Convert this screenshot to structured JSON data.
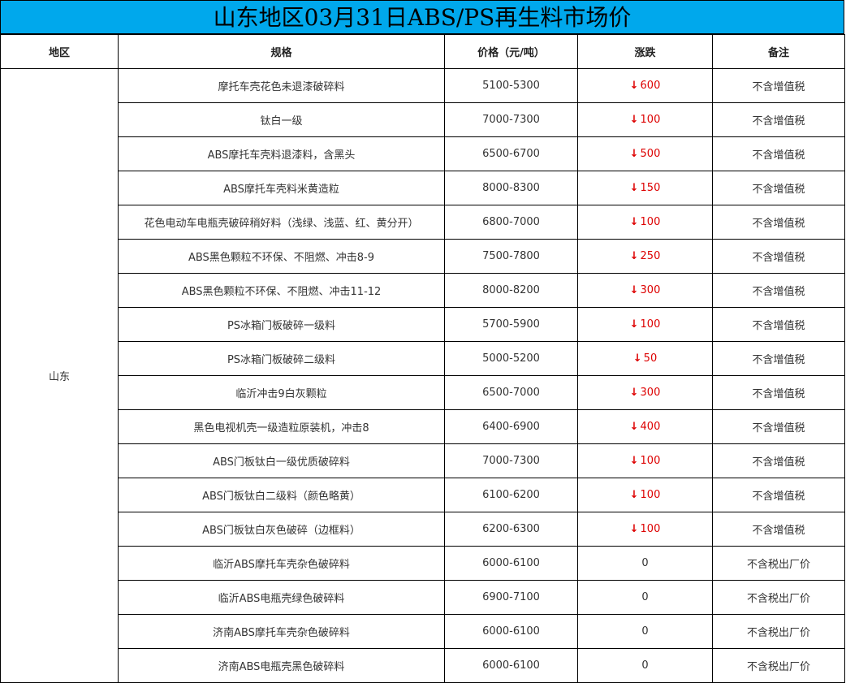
{
  "title": "山东地区03月31日ABS/PS再生料市场价",
  "headers": [
    "地区",
    "规格",
    "价格（元/吨）",
    "涨跌",
    "备注"
  ],
  "region": "山东",
  "colors": {
    "title_bg": "#00a8ec",
    "down": "#dd0000"
  },
  "rows": [
    {
      "spec": "摩托车壳花色未退漆破碎料",
      "price": "5100-5300",
      "dir": "down",
      "change": "600",
      "note": "不含增值税"
    },
    {
      "spec": "钛白一级",
      "price": "7000-7300",
      "dir": "down",
      "change": "100",
      "note": "不含增值税"
    },
    {
      "spec": "ABS摩托车壳料退漆料，含黑头",
      "price": "6500-6700",
      "dir": "down",
      "change": "500",
      "note": "不含增值税"
    },
    {
      "spec": "ABS摩托车壳料米黄造粒",
      "price": "8000-8300",
      "dir": "down",
      "change": "150",
      "note": "不含增值税"
    },
    {
      "spec": "花色电动车电瓶壳破碎稍好料（浅绿、浅蓝、红、黄分开）",
      "price": "6800-7000",
      "dir": "down",
      "change": "100",
      "note": "不含增值税"
    },
    {
      "spec": "ABS黑色颗粒不环保、不阻燃、冲击8-9",
      "price": "7500-7800",
      "dir": "down",
      "change": "250",
      "note": "不含增值税"
    },
    {
      "spec": "ABS黑色颗粒不环保、不阻燃、冲击11-12",
      "price": "8000-8200",
      "dir": "down",
      "change": "300",
      "note": "不含增值税"
    },
    {
      "spec": "PS冰箱门板破碎一级料",
      "price": "5700-5900",
      "dir": "down",
      "change": "100",
      "note": "不含增值税"
    },
    {
      "spec": "PS冰箱门板破碎二级料",
      "price": "5000-5200",
      "dir": "down",
      "change": "50",
      "note": "不含增值税"
    },
    {
      "spec": "临沂冲击9白灰颗粒",
      "price": "6500-7000",
      "dir": "down",
      "change": "300",
      "note": "不含增值税"
    },
    {
      "spec": "黑色电视机壳一级造粒原装机，冲击8",
      "price": "6400-6900",
      "dir": "down",
      "change": "400",
      "note": "不含增值税"
    },
    {
      "spec": "ABS门板钛白一级优质破碎料",
      "price": "7000-7300",
      "dir": "down",
      "change": "100",
      "note": "不含增值税"
    },
    {
      "spec": "ABS门板钛白二级料（颜色略黄）",
      "price": "6100-6200",
      "dir": "down",
      "change": "100",
      "note": "不含增值税"
    },
    {
      "spec": "ABS门板钛白灰色破碎（边框料）",
      "price": "6200-6300",
      "dir": "down",
      "change": "100",
      "note": "不含增值税"
    },
    {
      "spec": "临沂ABS摩托车壳杂色破碎料",
      "price": "6000-6100",
      "dir": "flat",
      "change": "0",
      "note": "不含税出厂价"
    },
    {
      "spec": "临沂ABS电瓶壳绿色破碎料",
      "price": "6900-7100",
      "dir": "flat",
      "change": "0",
      "note": "不含税出厂价"
    },
    {
      "spec": "济南ABS摩托车壳杂色破碎料",
      "price": "6000-6100",
      "dir": "flat",
      "change": "0",
      "note": "不含税出厂价"
    },
    {
      "spec": "济南ABS电瓶壳黑色破碎料",
      "price": "6000-6100",
      "dir": "flat",
      "change": "0",
      "note": "不含税出厂价"
    }
  ]
}
